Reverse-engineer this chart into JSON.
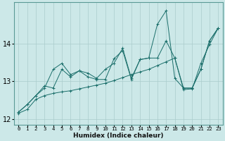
{
  "xlabel": "Humidex (Indice chaleur)",
  "ylabel": "",
  "background_color": "#cce8e8",
  "grid_color": "#aacccc",
  "line_color": "#1a6e6a",
  "x_values": [
    0,
    1,
    2,
    3,
    4,
    5,
    6,
    7,
    8,
    9,
    10,
    11,
    12,
    13,
    14,
    15,
    16,
    17,
    18,
    19,
    20,
    21,
    22,
    23
  ],
  "line1": [
    12.18,
    12.38,
    12.62,
    12.88,
    12.82,
    13.32,
    13.12,
    13.28,
    13.12,
    13.05,
    13.05,
    13.6,
    13.82,
    13.05,
    13.58,
    13.62,
    14.52,
    14.88,
    13.08,
    12.82,
    12.82,
    13.32,
    14.08,
    14.42
  ],
  "line2": [
    12.18,
    12.38,
    12.62,
    12.82,
    13.32,
    13.48,
    13.18,
    13.28,
    13.22,
    13.08,
    13.32,
    13.48,
    13.88,
    13.08,
    13.58,
    13.62,
    13.62,
    14.08,
    13.62,
    12.82,
    12.82,
    13.32,
    14.08,
    14.42
  ],
  "line3": [
    12.15,
    12.25,
    12.52,
    12.62,
    12.68,
    12.72,
    12.75,
    12.8,
    12.85,
    12.9,
    12.95,
    13.02,
    13.1,
    13.18,
    13.25,
    13.32,
    13.42,
    13.52,
    13.62,
    12.78,
    12.8,
    13.48,
    13.98,
    14.42
  ],
  "ylim": [
    11.85,
    15.1
  ],
  "yticks": [
    12,
    13,
    14
  ],
  "xticks": [
    0,
    1,
    2,
    3,
    4,
    5,
    6,
    7,
    8,
    9,
    10,
    11,
    12,
    13,
    14,
    15,
    16,
    17,
    18,
    19,
    20,
    21,
    22,
    23
  ]
}
